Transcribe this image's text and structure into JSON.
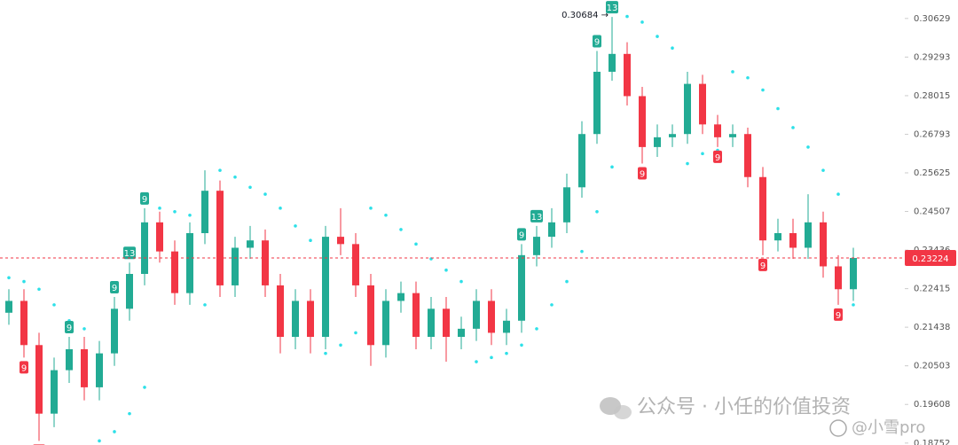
{
  "chart_data": {
    "type": "candlestick",
    "log_scale": true,
    "ylim": [
      0.1871,
      0.3129
    ],
    "yticks": [
      0.30629,
      0.29293,
      0.28015,
      0.26793,
      0.25625,
      0.24507,
      0.23436,
      0.22415,
      0.21438,
      0.20503,
      0.19608,
      0.18752
    ],
    "up_color": "#22ab94",
    "down_color": "#f23645",
    "categories": [
      null,
      null,
      null,
      null,
      null,
      null,
      null,
      null,
      null,
      null,
      null,
      null,
      null,
      null,
      null,
      null,
      null,
      null,
      null,
      null,
      null,
      null,
      null,
      null,
      null,
      null,
      null,
      null,
      null,
      null,
      null,
      null,
      null,
      null,
      null,
      null,
      null,
      null,
      null,
      null,
      null,
      null,
      null,
      null,
      null,
      null,
      null,
      null,
      null,
      null,
      null,
      null,
      null,
      null,
      null,
      null,
      null
    ],
    "open": [
      0.218,
      0.221,
      0.21,
      0.194,
      0.204,
      0.209,
      0.2,
      0.208,
      0.219,
      0.228,
      0.242,
      0.234,
      0.223,
      0.239,
      0.251,
      0.225,
      0.235,
      0.237,
      0.225,
      0.212,
      0.221,
      0.212,
      0.238,
      0.236,
      0.225,
      0.21,
      0.221,
      0.223,
      0.212,
      0.219,
      0.212,
      0.214,
      0.221,
      0.213,
      0.216,
      0.233,
      0.238,
      0.242,
      0.252,
      0.268,
      0.288,
      0.294,
      0.28,
      0.264,
      0.267,
      0.268,
      0.284,
      0.271,
      0.267,
      0.268,
      0.255,
      0.237,
      0.239,
      0.235,
      0.242,
      0.23,
      0.224
    ],
    "high": [
      0.224,
      0.224,
      0.213,
      0.207,
      0.212,
      0.212,
      0.211,
      0.222,
      0.231,
      0.246,
      0.245,
      0.237,
      0.242,
      0.257,
      0.254,
      0.238,
      0.241,
      0.24,
      0.228,
      0.224,
      0.224,
      0.241,
      0.246,
      0.239,
      0.228,
      0.224,
      0.226,
      0.226,
      0.222,
      0.222,
      0.217,
      0.224,
      0.224,
      0.219,
      0.236,
      0.241,
      0.246,
      0.256,
      0.272,
      0.295,
      0.30684,
      0.298,
      0.283,
      0.271,
      0.271,
      0.288,
      0.287,
      0.274,
      0.271,
      0.27,
      0.258,
      0.243,
      0.243,
      0.25,
      0.245,
      0.233,
      0.235
    ],
    "low": [
      0.215,
      0.207,
      0.188,
      0.191,
      0.201,
      0.197,
      0.197,
      0.205,
      0.216,
      0.225,
      0.231,
      0.22,
      0.22,
      0.236,
      0.222,
      0.222,
      0.232,
      0.222,
      0.208,
      0.209,
      0.208,
      0.209,
      0.233,
      0.222,
      0.205,
      0.207,
      0.218,
      0.209,
      0.209,
      0.206,
      0.209,
      0.211,
      0.21,
      0.21,
      0.213,
      0.23,
      0.235,
      0.239,
      0.249,
      0.265,
      0.285,
      0.277,
      0.259,
      0.261,
      0.264,
      0.265,
      0.268,
      0.264,
      0.264,
      0.252,
      0.233,
      0.234,
      0.232,
      0.232,
      0.227,
      0.22,
      0.221
    ],
    "close": [
      0.221,
      0.21,
      0.194,
      0.204,
      0.209,
      0.2,
      0.208,
      0.219,
      0.228,
      0.242,
      0.234,
      0.223,
      0.239,
      0.251,
      0.225,
      0.235,
      0.237,
      0.225,
      0.212,
      0.221,
      0.212,
      0.238,
      0.236,
      0.225,
      0.21,
      0.221,
      0.223,
      0.212,
      0.219,
      0.212,
      0.214,
      0.221,
      0.213,
      0.216,
      0.233,
      0.238,
      0.242,
      0.252,
      0.268,
      0.288,
      0.294,
      0.28,
      0.264,
      0.267,
      0.268,
      0.284,
      0.271,
      0.267,
      0.268,
      0.255,
      0.237,
      0.239,
      0.235,
      0.242,
      0.23,
      0.224,
      0.23224
    ],
    "sar": {
      "color": "#2de0e8",
      "values": [
        0.227,
        0.226,
        0.224,
        0.22,
        0.216,
        0.214,
        0.188,
        0.19,
        0.194,
        0.2,
        0.246,
        0.245,
        0.244,
        0.22,
        0.257,
        0.255,
        0.252,
        0.25,
        0.246,
        0.241,
        0.237,
        0.208,
        0.21,
        0.213,
        0.246,
        0.244,
        0.24,
        0.236,
        0.232,
        0.229,
        0.226,
        0.206,
        0.207,
        0.208,
        0.21,
        0.214,
        0.22,
        0.226,
        0.234,
        0.245,
        0.258,
        0.307,
        0.305,
        0.3,
        0.296,
        0.259,
        0.262,
        0.263,
        0.288,
        0.286,
        0.282,
        0.276,
        0.27,
        0.264,
        0.257,
        0.25,
        0.22
      ]
    },
    "markers": [
      {
        "index": 1,
        "text": "9",
        "side": "below"
      },
      {
        "index": 2,
        "text": "13",
        "side": "below"
      },
      {
        "index": 4,
        "text": "9",
        "side": "above"
      },
      {
        "index": 7,
        "text": "9",
        "side": "above"
      },
      {
        "index": 8,
        "text": "13",
        "side": "above"
      },
      {
        "index": 9,
        "text": "9",
        "side": "above"
      },
      {
        "index": 34,
        "text": "9",
        "side": "above"
      },
      {
        "index": 35,
        "text": "13",
        "side": "above"
      },
      {
        "index": 39,
        "text": "9",
        "side": "above"
      },
      {
        "index": 40,
        "text": "13",
        "side": "above"
      },
      {
        "index": 42,
        "text": "9",
        "side": "below"
      },
      {
        "index": 47,
        "text": "9",
        "side": "below"
      },
      {
        "index": 50,
        "text": "9",
        "side": "below"
      },
      {
        "index": 55,
        "text": "9",
        "side": "below"
      }
    ],
    "max_label": "0.30684 →",
    "last_price": {
      "value": 0.23224,
      "label": "0.23224"
    },
    "watermark": {
      "account": "公众号 · 小任的价值投资",
      "handle": "@小雪pro"
    }
  }
}
